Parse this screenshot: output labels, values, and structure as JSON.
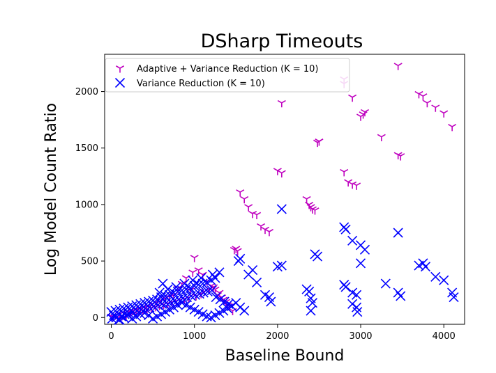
{
  "chart_data": {
    "type": "scatter",
    "title": "DSharp Timeouts",
    "xlabel": "Baseline Bound",
    "ylabel": "Log Model Count Ratio",
    "xlim": [
      -80,
      4250
    ],
    "ylim": [
      -60,
      2330
    ],
    "xticks": [
      0,
      1000,
      2000,
      3000,
      4000
    ],
    "yticks": [
      0,
      500,
      1000,
      1500,
      2000
    ],
    "legend_position": "upper-left",
    "grid": false,
    "series": [
      {
        "name": "Adaptive + Variance Reduction (K = 10)",
        "marker": "tri_down",
        "color": "#bf00bf",
        "points": [
          [
            3450,
            2230
          ],
          [
            2800,
            2110
          ],
          [
            2800,
            2070
          ],
          [
            2900,
            1950
          ],
          [
            3700,
            1980
          ],
          [
            3750,
            1960
          ],
          [
            3800,
            1900
          ],
          [
            3900,
            1860
          ],
          [
            4000,
            1810
          ],
          [
            4100,
            1690
          ],
          [
            3050,
            1820
          ],
          [
            3030,
            1800
          ],
          [
            3000,
            1780
          ],
          [
            2050,
            1900
          ],
          [
            3250,
            1600
          ],
          [
            2500,
            1560
          ],
          [
            2480,
            1550
          ],
          [
            3450,
            1440
          ],
          [
            3480,
            1430
          ],
          [
            2000,
            1300
          ],
          [
            2050,
            1280
          ],
          [
            2800,
            1290
          ],
          [
            2850,
            1200
          ],
          [
            2900,
            1180
          ],
          [
            2950,
            1170
          ],
          [
            1550,
            1110
          ],
          [
            1600,
            1050
          ],
          [
            1650,
            980
          ],
          [
            1700,
            920
          ],
          [
            1750,
            910
          ],
          [
            2350,
            1050
          ],
          [
            2380,
            1000
          ],
          [
            2400,
            980
          ],
          [
            2420,
            960
          ],
          [
            2450,
            950
          ],
          [
            1800,
            810
          ],
          [
            1850,
            780
          ],
          [
            1900,
            760
          ],
          [
            1500,
            610
          ],
          [
            1520,
            590
          ],
          [
            1480,
            600
          ],
          [
            1000,
            530
          ],
          [
            1050,
            420
          ],
          [
            980,
            400
          ],
          [
            1100,
            380
          ],
          [
            900,
            350
          ],
          [
            1150,
            320
          ],
          [
            850,
            300
          ],
          [
            1200,
            280
          ],
          [
            800,
            260
          ],
          [
            1250,
            250
          ],
          [
            950,
            240
          ],
          [
            1300,
            220
          ],
          [
            750,
            200
          ],
          [
            700,
            180
          ],
          [
            650,
            170
          ],
          [
            1350,
            160
          ],
          [
            600,
            150
          ],
          [
            550,
            130
          ],
          [
            500,
            120
          ],
          [
            1400,
            110
          ],
          [
            450,
            100
          ],
          [
            400,
            90
          ],
          [
            350,
            80
          ],
          [
            300,
            70
          ],
          [
            250,
            60
          ],
          [
            200,
            50
          ],
          [
            150,
            40
          ],
          [
            100,
            30
          ],
          [
            50,
            20
          ],
          [
            0,
            10
          ],
          [
            20,
            5
          ],
          [
            80,
            0
          ],
          [
            130,
            15
          ],
          [
            180,
            25
          ],
          [
            230,
            35
          ],
          [
            280,
            45
          ],
          [
            330,
            55
          ],
          [
            380,
            65
          ],
          [
            430,
            75
          ],
          [
            480,
            85
          ],
          [
            530,
            95
          ],
          [
            580,
            105
          ],
          [
            630,
            115
          ],
          [
            680,
            125
          ],
          [
            730,
            135
          ],
          [
            780,
            145
          ],
          [
            830,
            155
          ],
          [
            880,
            165
          ],
          [
            930,
            175
          ],
          [
            1020,
            190
          ],
          [
            1080,
            210
          ],
          [
            1120,
            230
          ],
          [
            1180,
            250
          ],
          [
            1230,
            270
          ],
          [
            1280,
            200
          ],
          [
            1330,
            180
          ],
          [
            1380,
            140
          ],
          [
            1420,
            100
          ],
          [
            1460,
            60
          ]
        ]
      },
      {
        "name": "Variance Reduction (K = 10)",
        "marker": "x",
        "color": "#0000ff",
        "points": [
          [
            2050,
            960
          ],
          [
            2800,
            800
          ],
          [
            2820,
            780
          ],
          [
            3450,
            750
          ],
          [
            2900,
            680
          ],
          [
            3000,
            640
          ],
          [
            3050,
            600
          ],
          [
            2450,
            560
          ],
          [
            2480,
            540
          ],
          [
            1550,
            520
          ],
          [
            1530,
            500
          ],
          [
            3000,
            480
          ],
          [
            3700,
            460
          ],
          [
            3750,
            480
          ],
          [
            3780,
            450
          ],
          [
            2000,
            450
          ],
          [
            2050,
            460
          ],
          [
            1700,
            420
          ],
          [
            1650,
            380
          ],
          [
            3900,
            360
          ],
          [
            4000,
            330
          ],
          [
            1750,
            310
          ],
          [
            3300,
            300
          ],
          [
            2800,
            290
          ],
          [
            2820,
            270
          ],
          [
            2350,
            250
          ],
          [
            2380,
            230
          ],
          [
            2900,
            220
          ],
          [
            2950,
            200
          ],
          [
            3450,
            220
          ],
          [
            3480,
            190
          ],
          [
            4100,
            220
          ],
          [
            4120,
            180
          ],
          [
            1850,
            200
          ],
          [
            1900,
            180
          ],
          [
            1920,
            140
          ],
          [
            2400,
            170
          ],
          [
            2420,
            130
          ],
          [
            2400,
            60
          ],
          [
            2900,
            120
          ],
          [
            2950,
            90
          ],
          [
            2960,
            50
          ],
          [
            1500,
            130
          ],
          [
            1550,
            90
          ],
          [
            1600,
            60
          ],
          [
            1300,
            400
          ],
          [
            1250,
            350
          ],
          [
            1200,
            330
          ],
          [
            1150,
            310
          ],
          [
            1100,
            300
          ],
          [
            1050,
            290
          ],
          [
            1000,
            280
          ],
          [
            950,
            260
          ],
          [
            900,
            250
          ],
          [
            850,
            240
          ],
          [
            800,
            230
          ],
          [
            750,
            220
          ],
          [
            700,
            200
          ],
          [
            650,
            190
          ],
          [
            620,
            300
          ],
          [
            600,
            180
          ],
          [
            550,
            160
          ],
          [
            500,
            150
          ],
          [
            450,
            140
          ],
          [
            400,
            130
          ],
          [
            350,
            120
          ],
          [
            300,
            110
          ],
          [
            250,
            100
          ],
          [
            200,
            90
          ],
          [
            150,
            80
          ],
          [
            100,
            70
          ],
          [
            50,
            60
          ],
          [
            0,
            50
          ],
          [
            30,
            20
          ],
          [
            60,
            0
          ],
          [
            90,
            -20
          ],
          [
            120,
            10
          ],
          [
            160,
            30
          ],
          [
            210,
            40
          ],
          [
            260,
            50
          ],
          [
            310,
            60
          ],
          [
            360,
            70
          ],
          [
            410,
            80
          ],
          [
            460,
            90
          ],
          [
            510,
            100
          ],
          [
            560,
            110
          ],
          [
            610,
            120
          ],
          [
            660,
            130
          ],
          [
            710,
            140
          ],
          [
            760,
            150
          ],
          [
            810,
            160
          ],
          [
            860,
            170
          ],
          [
            910,
            180
          ],
          [
            960,
            190
          ],
          [
            1010,
            200
          ],
          [
            1060,
            210
          ],
          [
            1110,
            220
          ],
          [
            1160,
            230
          ],
          [
            1210,
            240
          ],
          [
            1260,
            180
          ],
          [
            1310,
            160
          ],
          [
            1360,
            140
          ],
          [
            1410,
            120
          ],
          [
            1450,
            100
          ],
          [
            1400,
            80
          ],
          [
            1350,
            60
          ],
          [
            1300,
            40
          ],
          [
            1250,
            20
          ],
          [
            1200,
            0
          ],
          [
            1150,
            10
          ],
          [
            1100,
            30
          ],
          [
            1050,
            50
          ],
          [
            1000,
            70
          ],
          [
            950,
            90
          ],
          [
            900,
            110
          ],
          [
            850,
            130
          ],
          [
            800,
            110
          ],
          [
            750,
            90
          ],
          [
            700,
            70
          ],
          [
            650,
            50
          ],
          [
            600,
            30
          ],
          [
            550,
            10
          ],
          [
            500,
            -10
          ],
          [
            450,
            20
          ],
          [
            400,
            40
          ],
          [
            350,
            30
          ],
          [
            300,
            10
          ],
          [
            250,
            -10
          ],
          [
            200,
            20
          ],
          [
            150,
            0
          ],
          [
            100,
            -20
          ],
          [
            50,
            10
          ],
          [
            10,
            -10
          ],
          [
            1080,
            350
          ],
          [
            980,
            330
          ],
          [
            1220,
            380
          ],
          [
            880,
            300
          ],
          [
            780,
            270
          ],
          [
            680,
            250
          ],
          [
            580,
            220
          ]
        ]
      }
    ]
  }
}
